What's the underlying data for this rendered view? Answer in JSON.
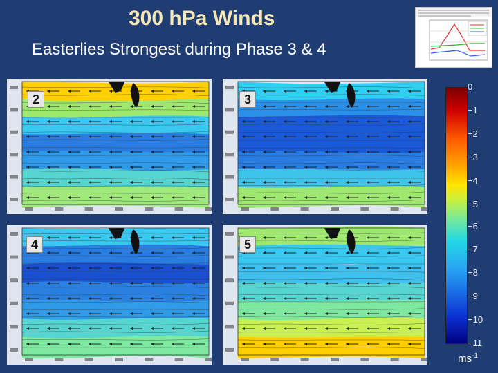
{
  "slide": {
    "title": "300 hPa Winds",
    "subtitle": "Easterlies Strongest during Phase 3 & 4"
  },
  "panels": [
    {
      "label": "2",
      "colors": [
        "#ffd000",
        "#9fe870",
        "#39c8f0",
        "#2a7de0",
        "#2f9ae8",
        "#55d4d0",
        "#9fe87a"
      ]
    },
    {
      "label": "3",
      "colors": [
        "#2ecff0",
        "#2a90e8",
        "#1a5ad8",
        "#1a5ad8",
        "#2a7de0",
        "#3ec4ea",
        "#9fe870"
      ]
    },
    {
      "label": "4",
      "colors": [
        "#39c8f0",
        "#2a7de0",
        "#1a4fd0",
        "#2a80e0",
        "#2f9ae8",
        "#55d4d0",
        "#7fe8a0"
      ]
    },
    {
      "label": "5",
      "colors": [
        "#9fe870",
        "#39c8f0",
        "#3fc0ee",
        "#55d4d0",
        "#7fe8a0",
        "#c8f050",
        "#ffd000"
      ]
    }
  ],
  "colorbar": {
    "ticks": [
      "0",
      "−1",
      "−2",
      "−3",
      "−4",
      "−5",
      "−6",
      "−7",
      "−8",
      "−9",
      "−10",
      "−11"
    ],
    "unit_base": "ms",
    "unit_exp": "-1"
  }
}
